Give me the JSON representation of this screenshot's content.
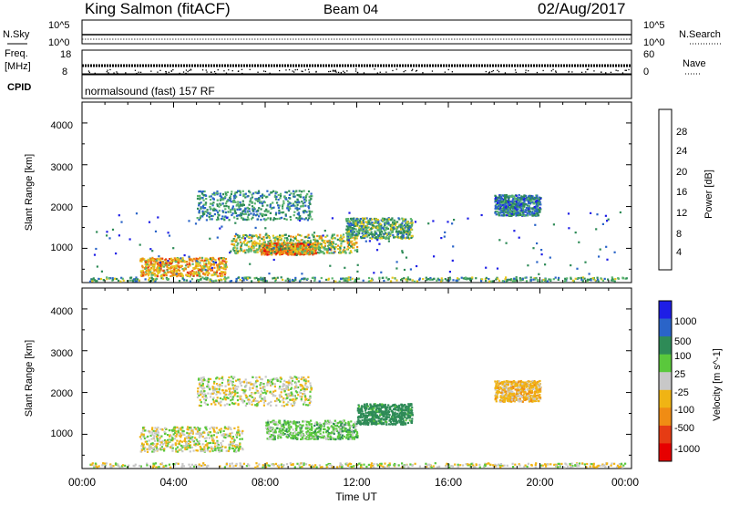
{
  "header": {
    "station": "King Salmon (fitACF)",
    "beam": "Beam 04",
    "date": "02/Aug/2017"
  },
  "status_panels": {
    "nsky_label": "N.Sky",
    "nsearch_label": "N.Search",
    "freq_label_1": "Freq.",
    "freq_label_2": "[MHz]",
    "nave_label": "Nave",
    "cpid_label": "CPID",
    "scale_top_left": "10^5",
    "scale_bottom_left": "10^0",
    "scale_top_right": "10^5",
    "scale_bottom_right": "10^0",
    "freq_top": "18",
    "freq_bottom": "8",
    "nave_top": "60",
    "nave_bottom": "0",
    "cpid_text": "normalsound (fast) 157 RF"
  },
  "chart_data": [
    {
      "type": "heatmap",
      "title": "",
      "xlabel": "Time UT",
      "ylabel": "Slant Range [km]",
      "x_ticks": [
        "00:00",
        "04:00",
        "08:00",
        "12:00",
        "16:00",
        "20:00",
        "00:00"
      ],
      "y_ticks": [
        "1000",
        "2000",
        "3000",
        "4000"
      ],
      "xlim_hours": [
        0,
        24
      ],
      "ylim": [
        180,
        4500
      ],
      "colorbar": {
        "label": "Power [dB]",
        "ticks": [
          "4",
          "8",
          "12",
          "16",
          "20",
          "24",
          "28"
        ],
        "colors": [
          "#1e1ee6",
          "#2a64c8",
          "#2e8b57",
          "#5ab46e",
          "#e6c81e",
          "#f08c14",
          "#e63c14",
          "#e60000"
        ]
      },
      "scatter_regions": [
        {
          "name": "near-range band",
          "t": [
            0.3,
            23.8
          ],
          "r": [
            230,
            330
          ],
          "value": 12
        },
        {
          "name": "main echo core",
          "t": [
            7.8,
            10.2
          ],
          "r": [
            870,
            1150
          ],
          "value": 24
        },
        {
          "name": "main echo",
          "t": [
            6.5,
            12.0
          ],
          "r": [
            900,
            1350
          ],
          "value": 16
        },
        {
          "name": "echo tail",
          "t": [
            11.5,
            14.4
          ],
          "r": [
            1250,
            1750
          ],
          "value": 12
        },
        {
          "name": "early echo",
          "t": [
            2.5,
            6.3
          ],
          "r": [
            350,
            800
          ],
          "value": 20
        },
        {
          "name": "upper echo",
          "t": [
            5.0,
            10.0
          ],
          "r": [
            1700,
            2400
          ],
          "value": 10
        },
        {
          "name": "late echo",
          "t": [
            18.0,
            20.0
          ],
          "r": [
            1800,
            2300
          ],
          "value": 8
        },
        {
          "name": "scattered",
          "t": [
            0.5,
            23.5
          ],
          "r": [
            400,
            1900
          ],
          "value": 6
        }
      ]
    },
    {
      "type": "heatmap",
      "title": "",
      "xlabel": "Time UT",
      "ylabel": "Slant Range [km]",
      "x_ticks": [
        "00:00",
        "04:00",
        "08:00",
        "12:00",
        "16:00",
        "20:00",
        "00:00"
      ],
      "y_ticks": [
        "1000",
        "2000",
        "3000",
        "4000"
      ],
      "xlim_hours": [
        0,
        24
      ],
      "ylim": [
        180,
        4500
      ],
      "colorbar": {
        "label": "Velocity [m s^-1]",
        "ticks": [
          "1000",
          "500",
          "100",
          "25",
          "-25",
          "-100",
          "-500",
          "-1000"
        ],
        "colors": [
          "#1e1ee6",
          "#2a64c8",
          "#2e8b57",
          "#5ac83c",
          "#c8c8c8",
          "#f0b414",
          "#f08c14",
          "#e63c14",
          "#e60000"
        ]
      },
      "scatter_regions": [
        {
          "name": "near-range band",
          "t": [
            0.3,
            23.8
          ],
          "r": [
            230,
            330
          ],
          "value": 0
        },
        {
          "name": "main echo",
          "t": [
            8.0,
            12.0
          ],
          "r": [
            900,
            1350
          ],
          "value": 60
        },
        {
          "name": "echo tail",
          "t": [
            12.0,
            14.4
          ],
          "r": [
            1250,
            1750
          ],
          "value": 150
        },
        {
          "name": "early echo",
          "t": [
            2.5,
            7.0
          ],
          "r": [
            600,
            1200
          ],
          "value": 0
        },
        {
          "name": "upper echo",
          "t": [
            5.0,
            10.0
          ],
          "r": [
            1700,
            2400
          ],
          "value": 0
        },
        {
          "name": "late echo",
          "t": [
            18.0,
            20.0
          ],
          "r": [
            1800,
            2300
          ],
          "value": -60
        }
      ]
    }
  ]
}
